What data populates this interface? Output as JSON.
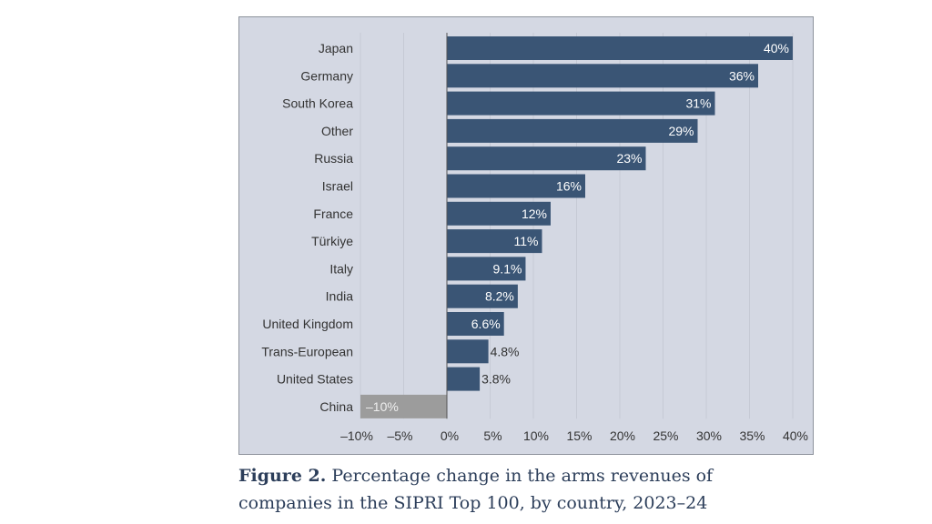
{
  "chart_data": {
    "type": "bar",
    "orientation": "horizontal",
    "categories": [
      "Japan",
      "Germany",
      "South Korea",
      "Other",
      "Russia",
      "Israel",
      "France",
      "Türkiye",
      "Italy",
      "India",
      "United Kingdom",
      "Trans-European",
      "United States",
      "China"
    ],
    "values": [
      40,
      36,
      31,
      29,
      23,
      16,
      12,
      11,
      9.1,
      8.2,
      6.6,
      4.8,
      3.8,
      -10
    ],
    "data_labels": [
      "40%",
      "36%",
      "31%",
      "29%",
      "23%",
      "16%",
      "12%",
      "11%",
      "9.1%",
      "8.2%",
      "6.6%",
      "4.8%",
      "3.8%",
      "–10%"
    ],
    "x_ticks": [
      -10,
      -5,
      0,
      5,
      10,
      15,
      20,
      25,
      30,
      35,
      40
    ],
    "x_tick_labels": [
      "–10%",
      "–5%",
      "0%",
      "5%",
      "10%",
      "15%",
      "20%",
      "25%",
      "30%",
      "35%",
      "40%"
    ],
    "xlim": [
      -10,
      40
    ],
    "grid": "vertical",
    "title": "",
    "xlabel": "",
    "ylabel": "",
    "colors": {
      "positive": "#3a5575",
      "negative": "#9c9c9c",
      "background": "#d4d8e3"
    }
  },
  "caption": {
    "label": "Figure 2.",
    "text": "Percentage change in the arms revenues of",
    "text2": "companies in the SIPRI Top 100, by country, 2023–24"
  }
}
